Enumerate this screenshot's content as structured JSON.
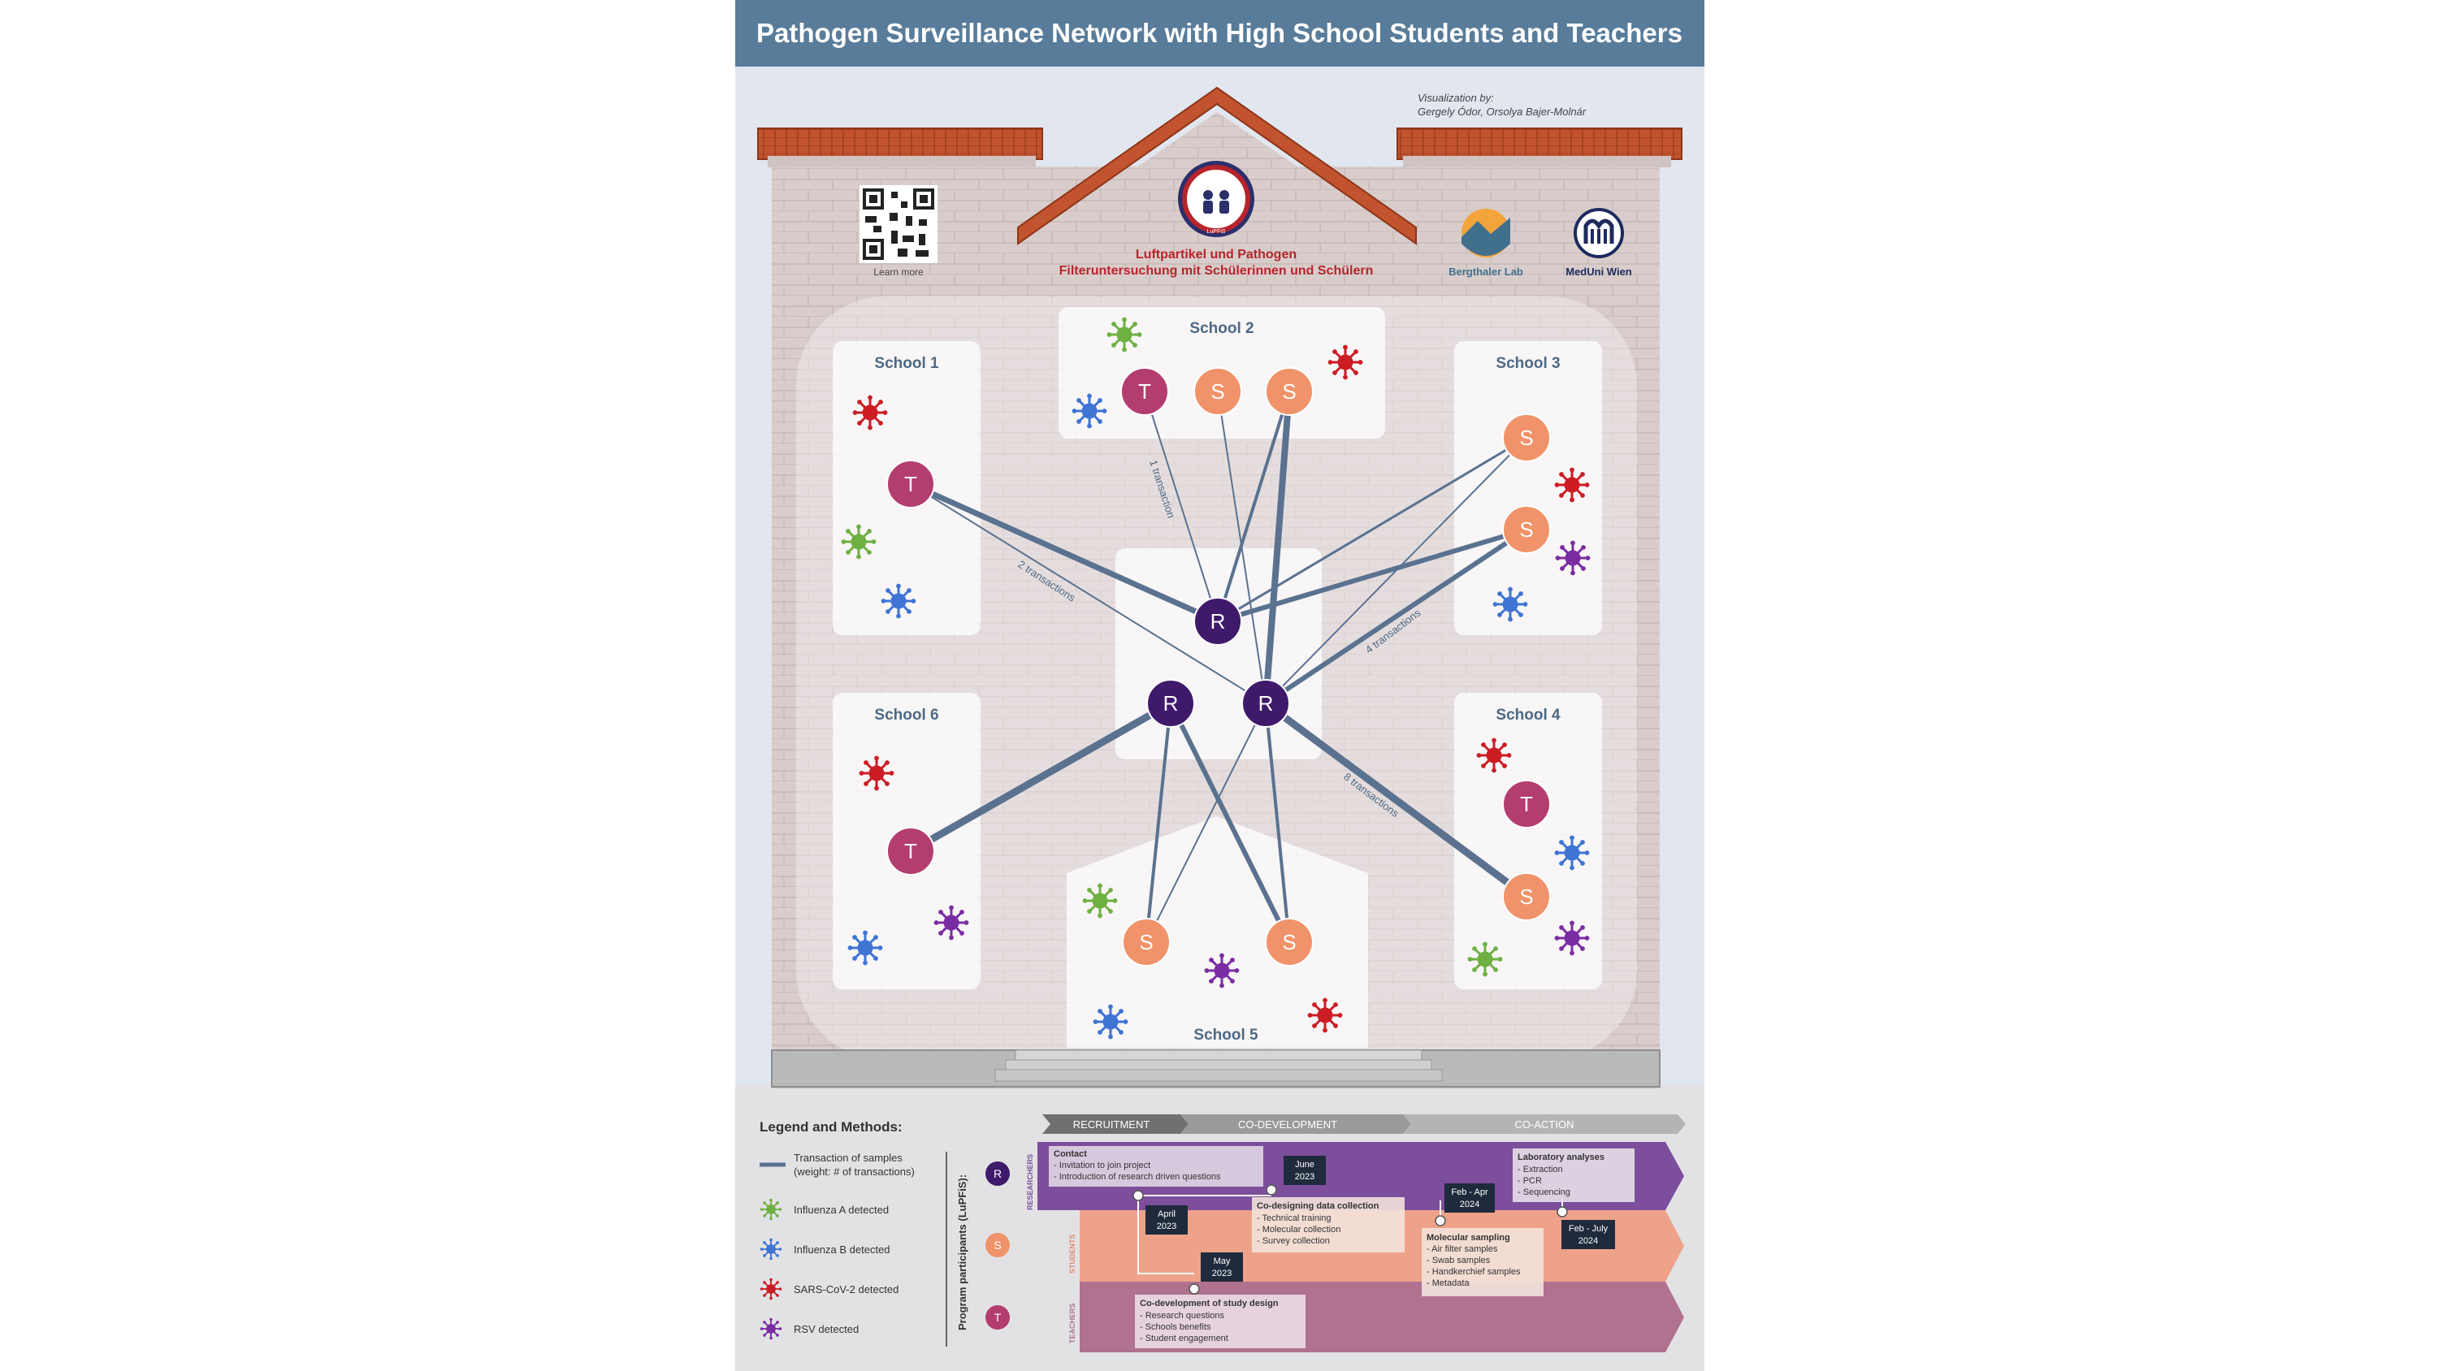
{
  "title": "Pathogen Surveillance Network with High School Students and Teachers",
  "credit": {
    "line1": "Visualization by:",
    "line2": "Gergely Ódor, Orsolya Bajer-Molnár"
  },
  "project": {
    "name_line1": "Luftpartikel und Pathogen",
    "name_line2": "Filteruntersuchung mit Schülerinnen und Schülern",
    "badge": "LuPFiS"
  },
  "qr_label": "Learn more",
  "partners": [
    "Bergthaler Lab",
    "MedUni Wien"
  ],
  "schools": [
    {
      "name": "School 1"
    },
    {
      "name": "School 2"
    },
    {
      "name": "School 3"
    },
    {
      "name": "School 4"
    },
    {
      "name": "School 5"
    },
    {
      "name": "School 6"
    }
  ],
  "nodes": {
    "researcher": "R",
    "student": "S",
    "teacher": "T"
  },
  "edge_labels": [
    "1 transaction",
    "2 transactions",
    "4 transactions",
    "8 transactions"
  ],
  "legend": {
    "title": "Legend and Methods:",
    "transaction_line1": "Transaction of samples",
    "transaction_line2": "(weight: # of transactions)",
    "items": [
      "Influenza A detected",
      "Influenza B detected",
      "SARS-CoV-2 detected",
      "RSV detected"
    ],
    "participants_label": "Program participants (LuPFiS):"
  },
  "phases": [
    "RECRUITMENT",
    "CO-DEVELOPMENT",
    "CO-ACTION"
  ],
  "lanes": [
    "RESEARCHERS",
    "STUDENTS",
    "TEACHERS"
  ],
  "timeline": {
    "contact": {
      "title": "Contact",
      "items": [
        "- Invitation to join project",
        "- Introduction of research driven questions"
      ]
    },
    "codesign": {
      "title": "Co-designing data collection",
      "items": [
        "- Technical training",
        "- Molecular collection",
        "- Survey collection"
      ]
    },
    "lab": {
      "title": "Laboratory analyses",
      "items": [
        "- Extraction",
        "- PCR",
        "- Sequencing"
      ]
    },
    "molecular": {
      "title": "Molecular sampling",
      "items": [
        "- Air filter samples",
        "- Swab samples",
        "- Handkerchief samples",
        "- Metadata"
      ]
    },
    "codev": {
      "title": "Co-development of study design",
      "items": [
        "- Research questions",
        "- Schools benefits",
        "- Student engagement"
      ]
    },
    "dates": {
      "april": [
        "April",
        "2023"
      ],
      "may": [
        "May",
        "2023"
      ],
      "june": [
        "June",
        "2023"
      ],
      "febapr": [
        "Feb - Apr",
        "2024"
      ],
      "febjul": [
        "Feb - July",
        "2024"
      ]
    }
  },
  "colors": {
    "title_bar": "#587c9a",
    "researcher": "#3f1a6b",
    "student": "#f0936a",
    "teacher": "#b33d6e",
    "edge": "#5a7290",
    "influenza_a": "#6fb043",
    "influenza_b": "#3f74d4",
    "sars_cov_2": "#cc1c24",
    "rsv": "#7a2da3"
  }
}
